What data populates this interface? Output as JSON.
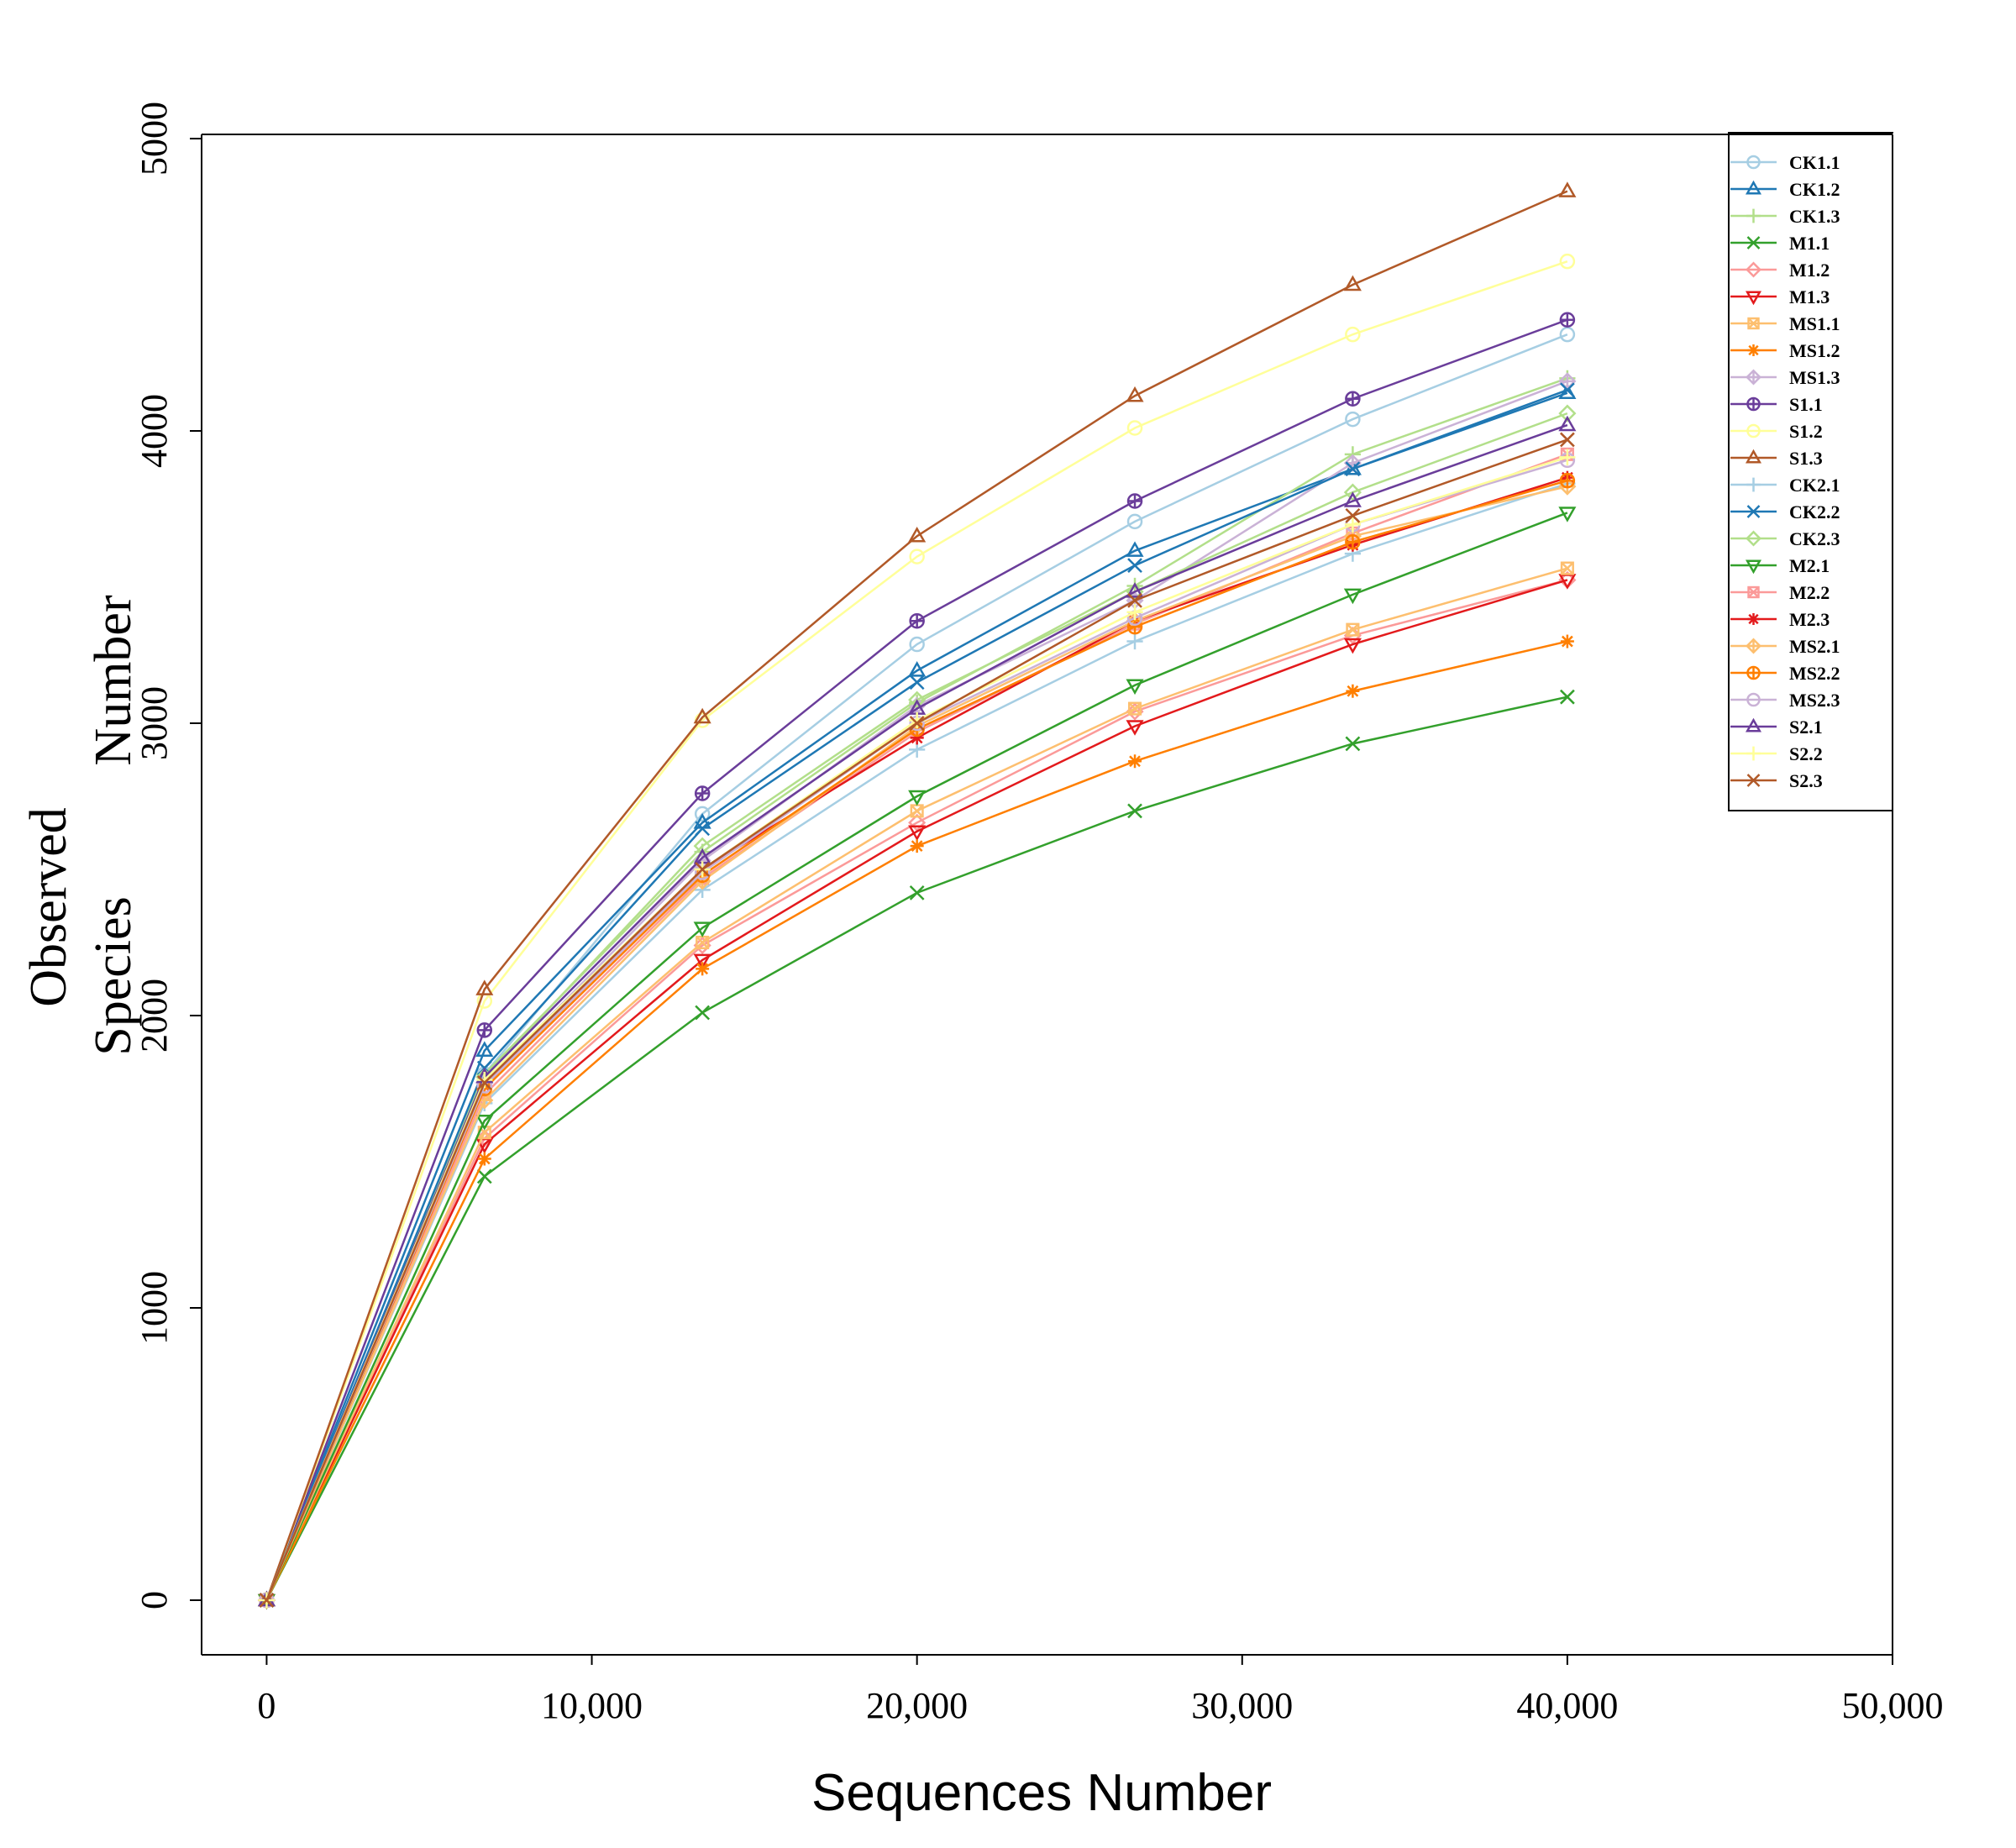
{
  "chart_data": {
    "type": "line",
    "title": "",
    "xlabel": "Sequences Number",
    "ylabel_lines": [
      "Observed",
      "Species",
      "Number"
    ],
    "xlim": [
      -2000,
      50000
    ],
    "ylim": [
      -180,
      5000
    ],
    "xticks": [
      0,
      10000,
      20000,
      30000,
      40000,
      50000
    ],
    "xtick_labels": [
      "0",
      "10,000",
      "20,000",
      "30,000",
      "40,000",
      "50,000"
    ],
    "yticks": [
      0,
      1000,
      2000,
      3000,
      4000,
      5000
    ],
    "ytick_labels": [
      "0",
      "1000",
      "2000",
      "3000",
      "4000",
      "5000"
    ],
    "legend_position": "top-right",
    "x": [
      0,
      6700,
      13400,
      20000,
      26700,
      33400,
      40000
    ],
    "series": [
      {
        "name": "CK1.1",
        "color": "#a6cee3",
        "marker": "circle",
        "values": [
          0,
          1800,
          2690,
          3270,
          3690,
          4040,
          4330
        ]
      },
      {
        "name": "CK1.2",
        "color": "#1f78b4",
        "marker": "triangle-up",
        "values": [
          0,
          1880,
          2660,
          3180,
          3590,
          3870,
          4130
        ]
      },
      {
        "name": "CK1.3",
        "color": "#b2df8a",
        "marker": "plus",
        "values": [
          0,
          1800,
          2560,
          3070,
          3470,
          3920,
          4180
        ]
      },
      {
        "name": "M1.1",
        "color": "#33a02c",
        "marker": "x",
        "values": [
          0,
          1450,
          2010,
          2420,
          2700,
          2930,
          3090
        ]
      },
      {
        "name": "M1.2",
        "color": "#fb9a99",
        "marker": "diamond",
        "values": [
          0,
          1580,
          2240,
          2660,
          3040,
          3300,
          3490
        ]
      },
      {
        "name": "M1.3",
        "color": "#e31a1c",
        "marker": "triangle-down",
        "values": [
          0,
          1560,
          2190,
          2630,
          2990,
          3270,
          3490
        ]
      },
      {
        "name": "MS1.1",
        "color": "#fdbf6f",
        "marker": "square-x",
        "values": [
          0,
          1600,
          2250,
          2700,
          3050,
          3320,
          3530
        ]
      },
      {
        "name": "MS1.2",
        "color": "#ff7f00",
        "marker": "asterisk",
        "values": [
          0,
          1510,
          2160,
          2580,
          2870,
          3110,
          3280
        ]
      },
      {
        "name": "MS1.3",
        "color": "#cab2d6",
        "marker": "diamond-plus",
        "values": [
          0,
          1770,
          2530,
          3060,
          3420,
          3890,
          4170
        ]
      },
      {
        "name": "S1.1",
        "color": "#6a3d9a",
        "marker": "circle-plus",
        "values": [
          0,
          1950,
          2760,
          3350,
          3760,
          4110,
          4380
        ]
      },
      {
        "name": "S1.2",
        "color": "#ffff99",
        "marker": "circle",
        "values": [
          0,
          2050,
          3010,
          3570,
          4010,
          4330,
          4580
        ]
      },
      {
        "name": "S1.3",
        "color": "#b15928",
        "marker": "triangle-up",
        "values": [
          0,
          2090,
          3020,
          3640,
          4120,
          4500,
          4820
        ]
      },
      {
        "name": "CK2.1",
        "color": "#a6cee3",
        "marker": "plus",
        "values": [
          0,
          1700,
          2430,
          2910,
          3280,
          3580,
          3820
        ]
      },
      {
        "name": "CK2.2",
        "color": "#1f78b4",
        "marker": "x",
        "values": [
          0,
          1820,
          2640,
          3140,
          3540,
          3870,
          4140
        ]
      },
      {
        "name": "CK2.3",
        "color": "#b2df8a",
        "marker": "diamond",
        "values": [
          0,
          1790,
          2580,
          3080,
          3450,
          3790,
          4060
        ]
      },
      {
        "name": "M2.1",
        "color": "#33a02c",
        "marker": "triangle-down",
        "values": [
          0,
          1640,
          2300,
          2750,
          3130,
          3440,
          3720
        ]
      },
      {
        "name": "M2.2",
        "color": "#fb9a99",
        "marker": "square-x",
        "values": [
          0,
          1730,
          2470,
          2970,
          3340,
          3650,
          3920
        ]
      },
      {
        "name": "M2.3",
        "color": "#e31a1c",
        "marker": "asterisk",
        "values": [
          0,
          1760,
          2500,
          2950,
          3350,
          3610,
          3840
        ]
      },
      {
        "name": "MS2.1",
        "color": "#fdbf6f",
        "marker": "diamond-plus",
        "values": [
          0,
          1710,
          2460,
          2990,
          3350,
          3640,
          3810
        ]
      },
      {
        "name": "MS2.2",
        "color": "#ff7f00",
        "marker": "circle-plus",
        "values": [
          0,
          1750,
          2480,
          2980,
          3330,
          3620,
          3830
        ]
      },
      {
        "name": "MS2.3",
        "color": "#cab2d6",
        "marker": "circle",
        "values": [
          0,
          1760,
          2490,
          3000,
          3360,
          3680,
          3900
        ]
      },
      {
        "name": "S2.1",
        "color": "#6a3d9a",
        "marker": "triangle-up",
        "values": [
          0,
          1790,
          2540,
          3050,
          3450,
          3760,
          4020
        ]
      },
      {
        "name": "S2.2",
        "color": "#ffff99",
        "marker": "plus",
        "values": [
          0,
          1780,
          2500,
          3010,
          3380,
          3680,
          3910
        ]
      },
      {
        "name": "S2.3",
        "color": "#b15928",
        "marker": "x",
        "values": [
          0,
          1770,
          2500,
          3000,
          3420,
          3710,
          3970
        ]
      }
    ]
  }
}
